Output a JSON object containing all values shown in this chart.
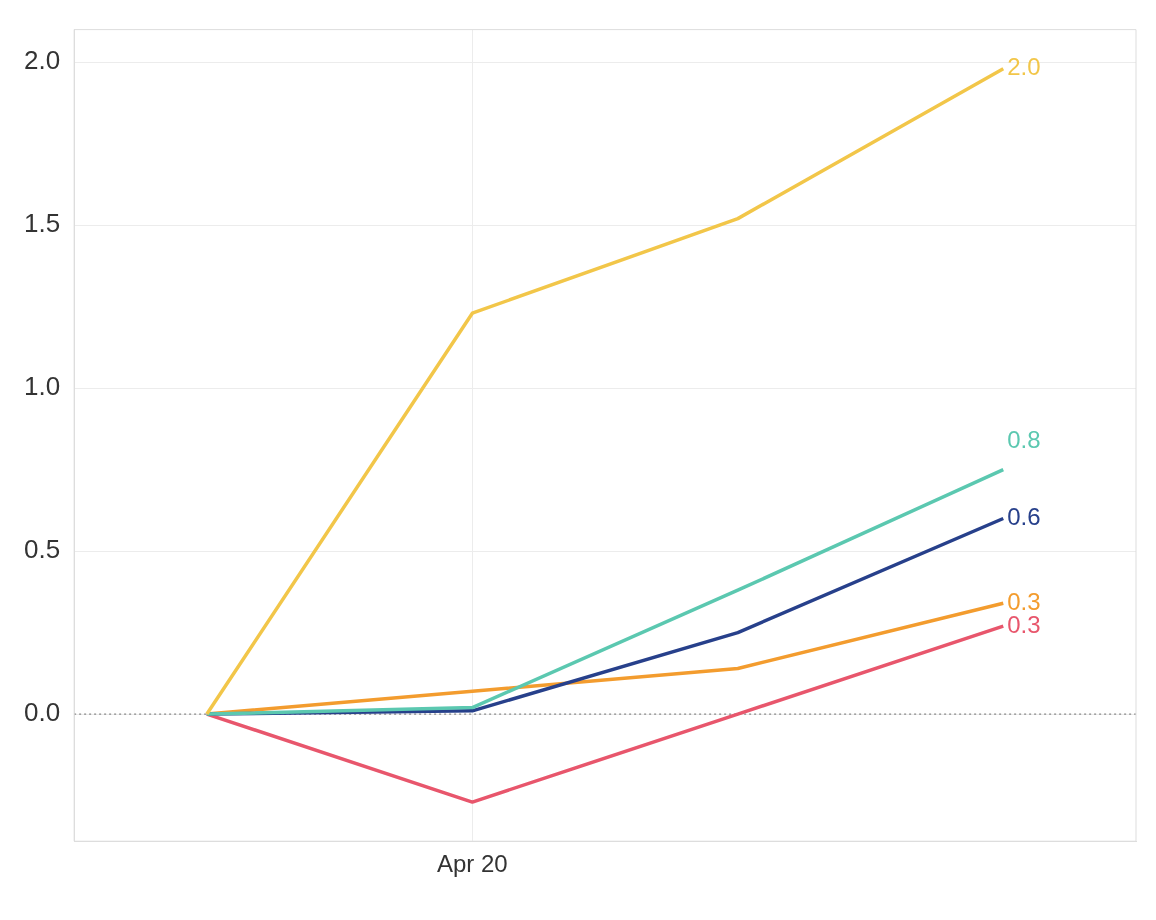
{
  "chart_data": {
    "type": "line",
    "categories": [
      null,
      "Apr 20",
      null,
      null
    ],
    "series": [
      {
        "color": "#f2c649",
        "values": [
          0,
          1.23,
          1.52,
          1.98
        ],
        "value_labels": [
          null,
          null,
          null,
          "2.0"
        ]
      },
      {
        "color": "#5bc8b0",
        "values": [
          0,
          0.02,
          0.38,
          0.75
        ],
        "value_labels": [
          null,
          null,
          null,
          "0.8"
        ]
      },
      {
        "color": "#27408b",
        "values": [
          0,
          0.01,
          0.25,
          0.6
        ],
        "value_labels": [
          null,
          null,
          null,
          "0.6"
        ]
      },
      {
        "color": "#f39c2e",
        "values": [
          0,
          0.07,
          0.14,
          0.34
        ],
        "value_labels": [
          null,
          null,
          null,
          "0.3"
        ]
      },
      {
        "color": "#e8566c",
        "values": [
          0,
          -0.27,
          0,
          0.27
        ],
        "value_labels": [
          null,
          null,
          null,
          "0.3"
        ]
      }
    ],
    "ylim": [
      -0.39,
      2.1
    ],
    "yticks": [
      {
        "value": 0,
        "label": "0.0"
      },
      {
        "value": 0.5,
        "label": "0.5"
      },
      {
        "value": 1,
        "label": "1.0"
      },
      {
        "value": 1.5,
        "label": "1.5"
      },
      {
        "value": 2,
        "label": "2.0"
      }
    ],
    "ref_lines": [
      {
        "axis": "y",
        "value": 0,
        "line_style": "dotted",
        "color": "#888888"
      }
    ],
    "grid": true,
    "legend": false,
    "marker": "none",
    "line_style": "solid"
  }
}
